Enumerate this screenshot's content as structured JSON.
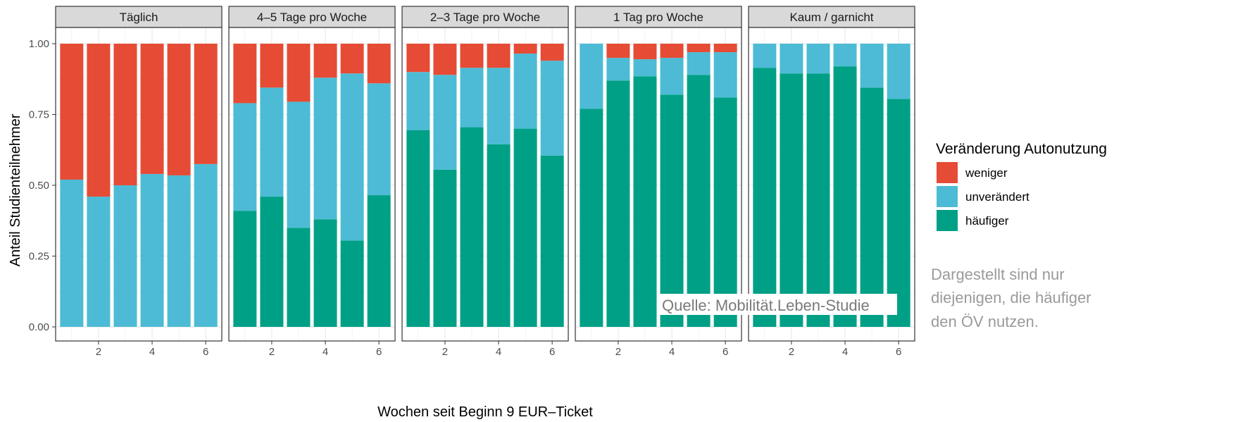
{
  "chart_data": {
    "type": "bar",
    "stacked": true,
    "facets": [
      "Täglich",
      "4–5 Tage pro Woche",
      "2–3 Tage pro Woche",
      "1 Tag pro Woche",
      "Kaum / garnicht"
    ],
    "x": [
      1,
      2,
      3,
      4,
      5,
      6
    ],
    "x_ticks": [
      "2",
      "4",
      "6"
    ],
    "y_ticks": [
      "0.00",
      "0.25",
      "0.50",
      "0.75",
      "1.00"
    ],
    "ylim": [
      0,
      1
    ],
    "xlabel": "Wochen seit Beginn 9 EUR–Ticket",
    "ylabel": "Anteil Studienteilnehmer",
    "grid": true,
    "legend": {
      "title": "Veränderung Autonutzung",
      "position": "right",
      "entries": [
        {
          "label": "weniger",
          "color": "#E64B35"
        },
        {
          "label": "unverändert",
          "color": "#4DBBD5"
        },
        {
          "label": "häufiger",
          "color": "#00A087"
        }
      ]
    },
    "series": [
      {
        "facet": "Täglich",
        "haeufiger": [
          0,
          0,
          0,
          0,
          0,
          0
        ],
        "unveraendert": [
          0.52,
          0.46,
          0.5,
          0.54,
          0.535,
          0.575
        ],
        "weniger": [
          0.48,
          0.54,
          0.5,
          0.46,
          0.465,
          0.425
        ]
      },
      {
        "facet": "4–5 Tage pro Woche",
        "haeufiger": [
          0.41,
          0.46,
          0.35,
          0.38,
          0.305,
          0.465
        ],
        "unveraendert": [
          0.38,
          0.385,
          0.445,
          0.5,
          0.59,
          0.395
        ],
        "weniger": [
          0.21,
          0.155,
          0.205,
          0.12,
          0.105,
          0.14
        ]
      },
      {
        "facet": "2–3 Tage pro Woche",
        "haeufiger": [
          0.695,
          0.555,
          0.705,
          0.645,
          0.7,
          0.605
        ],
        "unveraendert": [
          0.205,
          0.335,
          0.21,
          0.27,
          0.265,
          0.335
        ],
        "weniger": [
          0.1,
          0.11,
          0.085,
          0.085,
          0.035,
          0.06
        ]
      },
      {
        "facet": "1 Tag pro Woche",
        "haeufiger": [
          0.77,
          0.87,
          0.885,
          0.82,
          0.89,
          0.81
        ],
        "unveraendert": [
          0.23,
          0.08,
          0.06,
          0.13,
          0.08,
          0.16
        ],
        "weniger": [
          0,
          0.05,
          0.055,
          0.05,
          0.03,
          0.03
        ]
      },
      {
        "facet": "Kaum / garnicht",
        "haeufiger": [
          0.915,
          0.895,
          0.895,
          0.92,
          0.845,
          0.805
        ],
        "unveraendert": [
          0.085,
          0.105,
          0.105,
          0.08,
          0.155,
          0.195
        ],
        "weniger": [
          0,
          0,
          0,
          0,
          0,
          0
        ]
      }
    ],
    "annotations": {
      "source": "Quelle: Mobilität.Leben-Studie",
      "note_lines": [
        "Dargestellt sind nur",
        "diejenigen, die häufiger",
        "den ÖV nutzen."
      ]
    }
  }
}
